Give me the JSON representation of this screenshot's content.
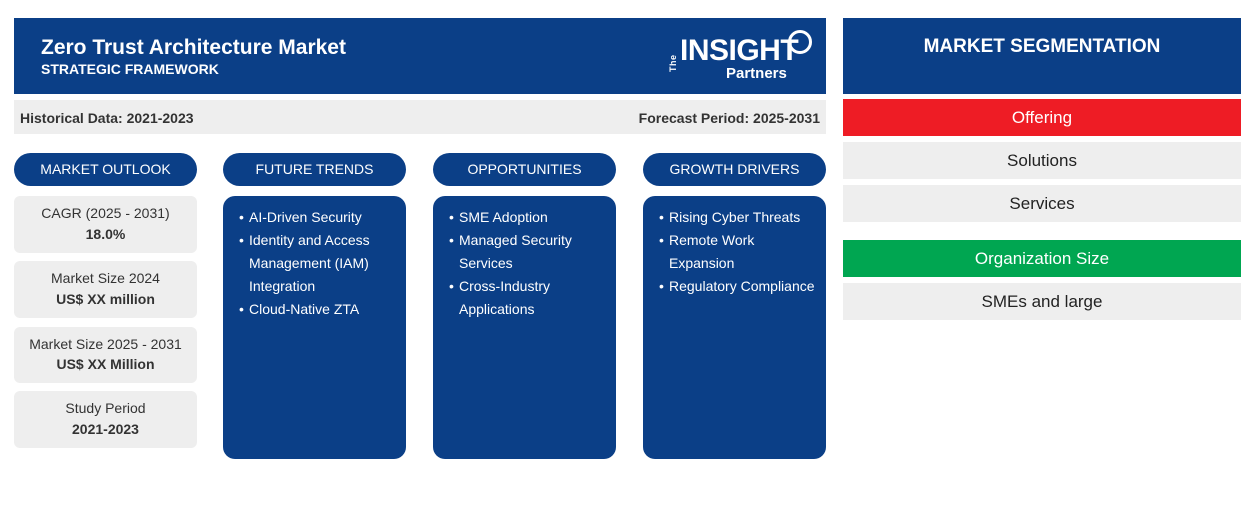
{
  "header": {
    "title": "Zero Trust Architecture Market",
    "subtitle": "STRATEGIC FRAMEWORK",
    "logo": {
      "the": "The",
      "insight": "INSIGHT",
      "partners": "Partners"
    }
  },
  "period": {
    "historical": "Historical Data: 2021-2023",
    "forecast": "Forecast Period: 2025-2031"
  },
  "market_outlook": {
    "label": "MARKET OUTLOOK",
    "cards": [
      {
        "label": "CAGR (2025 - 2031)",
        "value": "18.0%"
      },
      {
        "label": "Market Size 2024",
        "value": "US$ XX million"
      },
      {
        "label": "Market Size 2025 - 2031",
        "value": "US$ XX Million"
      },
      {
        "label": "Study Period",
        "value": "2021-2023"
      }
    ]
  },
  "future_trends": {
    "label": "FUTURE TRENDS",
    "items": [
      "AI-Driven Security",
      "Identity and Access Management (IAM) Integration",
      "Cloud-Native ZTA"
    ]
  },
  "opportunities": {
    "label": "OPPORTUNITIES",
    "items": [
      "SME Adoption",
      "Managed Security Services",
      "Cross-Industry Applications"
    ]
  },
  "growth_drivers": {
    "label": "GROWTH DRIVERS",
    "items": [
      "Rising Cyber Threats",
      "Remote Work Expansion",
      "Regulatory Compliance"
    ]
  },
  "segmentation": {
    "title": "MARKET SEGMENTATION",
    "categories": [
      {
        "name": "Offering",
        "color": "#ee1c25",
        "items": [
          "Solutions",
          "Services"
        ]
      },
      {
        "name": "Organization Size",
        "color": "#00a651",
        "items": [
          "SMEs and large"
        ]
      }
    ]
  }
}
